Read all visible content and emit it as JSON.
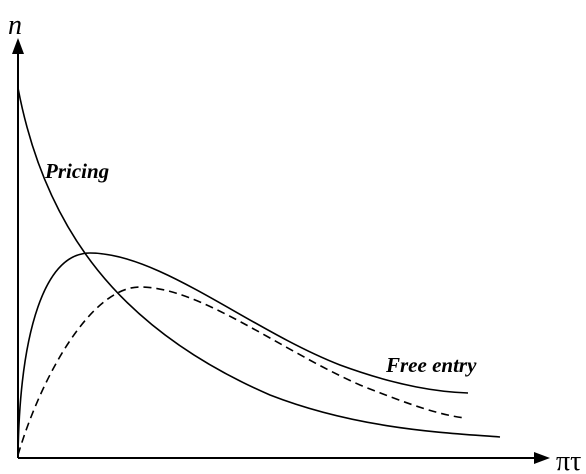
{
  "axes": {
    "y_label": "n",
    "x_label": "πτ"
  },
  "curves": [
    {
      "label": "Pricing"
    },
    {
      "label": "Free entry"
    }
  ]
}
